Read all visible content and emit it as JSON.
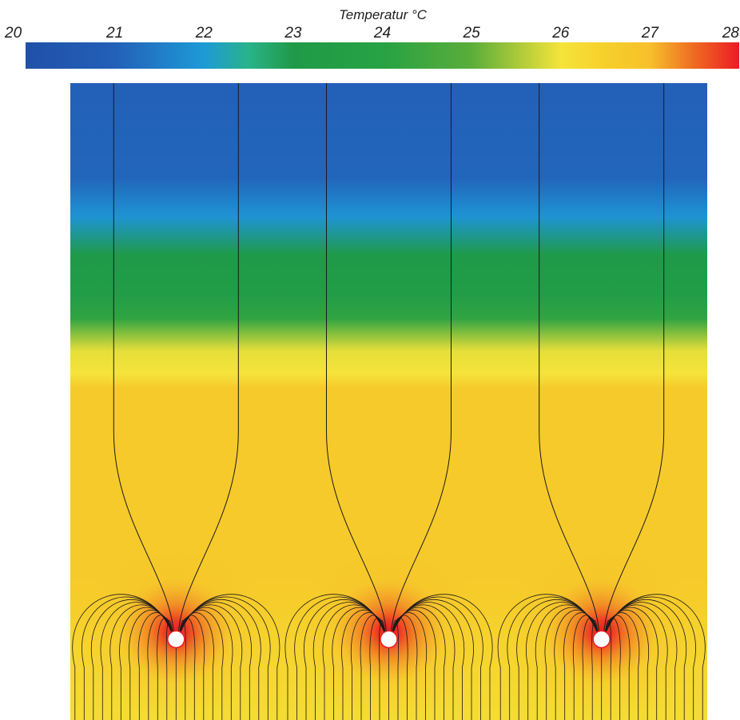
{
  "colorbar": {
    "title": "Temperatur °C",
    "min": 20,
    "max": 28,
    "ticks": [
      "20",
      "21",
      "22",
      "23",
      "24",
      "25",
      "26",
      "27",
      "28"
    ]
  },
  "field": {
    "vertical_profile_c": [
      [
        0.0,
        21.0
      ],
      [
        0.15,
        21.1
      ],
      [
        0.21,
        21.9
      ],
      [
        0.27,
        23.0
      ],
      [
        0.33,
        23.3
      ],
      [
        0.37,
        24.2
      ],
      [
        0.42,
        25.9
      ],
      [
        0.455,
        26.0
      ],
      [
        0.48,
        26.7
      ],
      [
        1.0,
        26.7
      ]
    ],
    "source_temperature_c": 28,
    "bottom_temperature_c": 26.2
  },
  "heat_sources": [
    {
      "name": "pipe-1",
      "x_fraction": 0.166
    },
    {
      "name": "pipe-2",
      "x_fraction": 0.5
    },
    {
      "name": "pipe-3",
      "x_fraction": 0.834
    }
  ],
  "colors": {
    "scale": [
      [
        20.0,
        "#2050a8"
      ],
      [
        21.0,
        "#2360b8"
      ],
      [
        22.0,
        "#1d9ad6"
      ],
      [
        22.5,
        "#2ab38a"
      ],
      [
        23.0,
        "#1f9a48"
      ],
      [
        24.0,
        "#27a244"
      ],
      [
        25.0,
        "#5aad3a"
      ],
      [
        26.0,
        "#f5e43a"
      ],
      [
        26.5,
        "#f6d02a"
      ],
      [
        27.0,
        "#f7c02b"
      ],
      [
        27.5,
        "#ee6a22"
      ],
      [
        28.0,
        "#ec1c24"
      ]
    ],
    "streamline": "#1a1a1a",
    "source_fill": "#ffffff"
  }
}
